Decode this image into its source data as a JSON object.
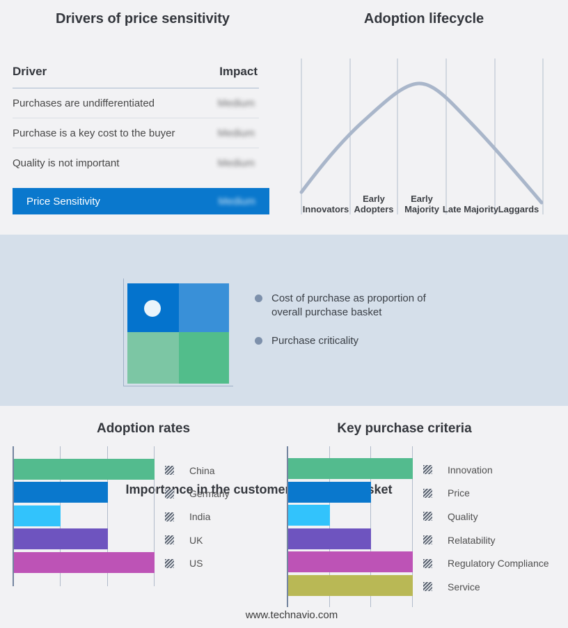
{
  "colors": {
    "page_bg": "#f2f2f4",
    "band_bg": "#d5dfea",
    "accent_blue": "#0a78cd",
    "grid_line": "#b1bbca",
    "axis_line": "#74859f",
    "curve": "#a9b6ca",
    "bullet_dot": "#7d90ab",
    "hatch_dark": "#4d5664"
  },
  "drivers_panel": {
    "title": "Drivers of price sensitivity",
    "columns": {
      "driver": "Driver",
      "impact": "Impact"
    },
    "rows": [
      {
        "driver": "Purchases are undifferentiated",
        "impact": "Medium"
      },
      {
        "driver": "Purchase is a key cost to the buyer",
        "impact": "Medium"
      },
      {
        "driver": "Quality is not important",
        "impact": "Medium"
      }
    ],
    "summary": {
      "label": "Price Sensitivity",
      "impact": "Medium"
    },
    "impact_values_blurred": true
  },
  "basket_panel": {
    "title": "Importance in the customer purchase basket",
    "bullets": [
      "Cost of purchase as proportion of overall purchase basket",
      "Purchase criticality"
    ],
    "quadrant": {
      "top_left": "#0473cd",
      "top_right": "#3990d8",
      "bottom_left": "#7cc6a4",
      "bottom_right": "#52bd8b",
      "dot": "#eaf4fb"
    }
  },
  "footer": {
    "url": "www.technavio.com"
  },
  "chart_data": [
    {
      "type": "line",
      "title": "Adoption lifecycle",
      "x_categories": [
        "Innovators",
        "Early Adopters",
        "Early Majority",
        "Late Majority",
        "Laggards"
      ],
      "description": "Bell-shaped adoption curve peaking in the Early Majority stage",
      "points_norm": [
        [
          0.0,
          0.07
        ],
        [
          0.2,
          0.45
        ],
        [
          0.4,
          0.78
        ],
        [
          0.48,
          0.84
        ],
        [
          0.6,
          0.74
        ],
        [
          0.8,
          0.42
        ],
        [
          1.0,
          0.02
        ]
      ],
      "grid": "vertical-section-lines",
      "legend": "none"
    },
    {
      "type": "bar",
      "title": "Adoption rates",
      "orientation": "horizontal",
      "categories": [
        "China",
        "Germany",
        "India",
        "UK",
        "US"
      ],
      "values": [
        3,
        2,
        1,
        2,
        3
      ],
      "xlim": [
        0,
        3
      ],
      "gridlines": [
        1,
        2,
        3
      ],
      "bar_colors": [
        "#53bb8e",
        "#0a78cd",
        "#32c3fc",
        "#6e54bf",
        "#bd53b6"
      ],
      "legend_position": "right"
    },
    {
      "type": "bar",
      "title": "Key purchase criteria",
      "orientation": "horizontal",
      "categories": [
        "Innovation",
        "Price",
        "Quality",
        "Relatability",
        "Regulatory Compliance",
        "Service"
      ],
      "values": [
        3,
        2,
        1,
        2,
        3,
        3
      ],
      "xlim": [
        0,
        3
      ],
      "gridlines": [
        1,
        2,
        3
      ],
      "bar_colors": [
        "#53bb8e",
        "#0a78cd",
        "#32c3fc",
        "#6e54bf",
        "#bd53b6",
        "#b9b855"
      ],
      "legend_position": "right"
    }
  ]
}
